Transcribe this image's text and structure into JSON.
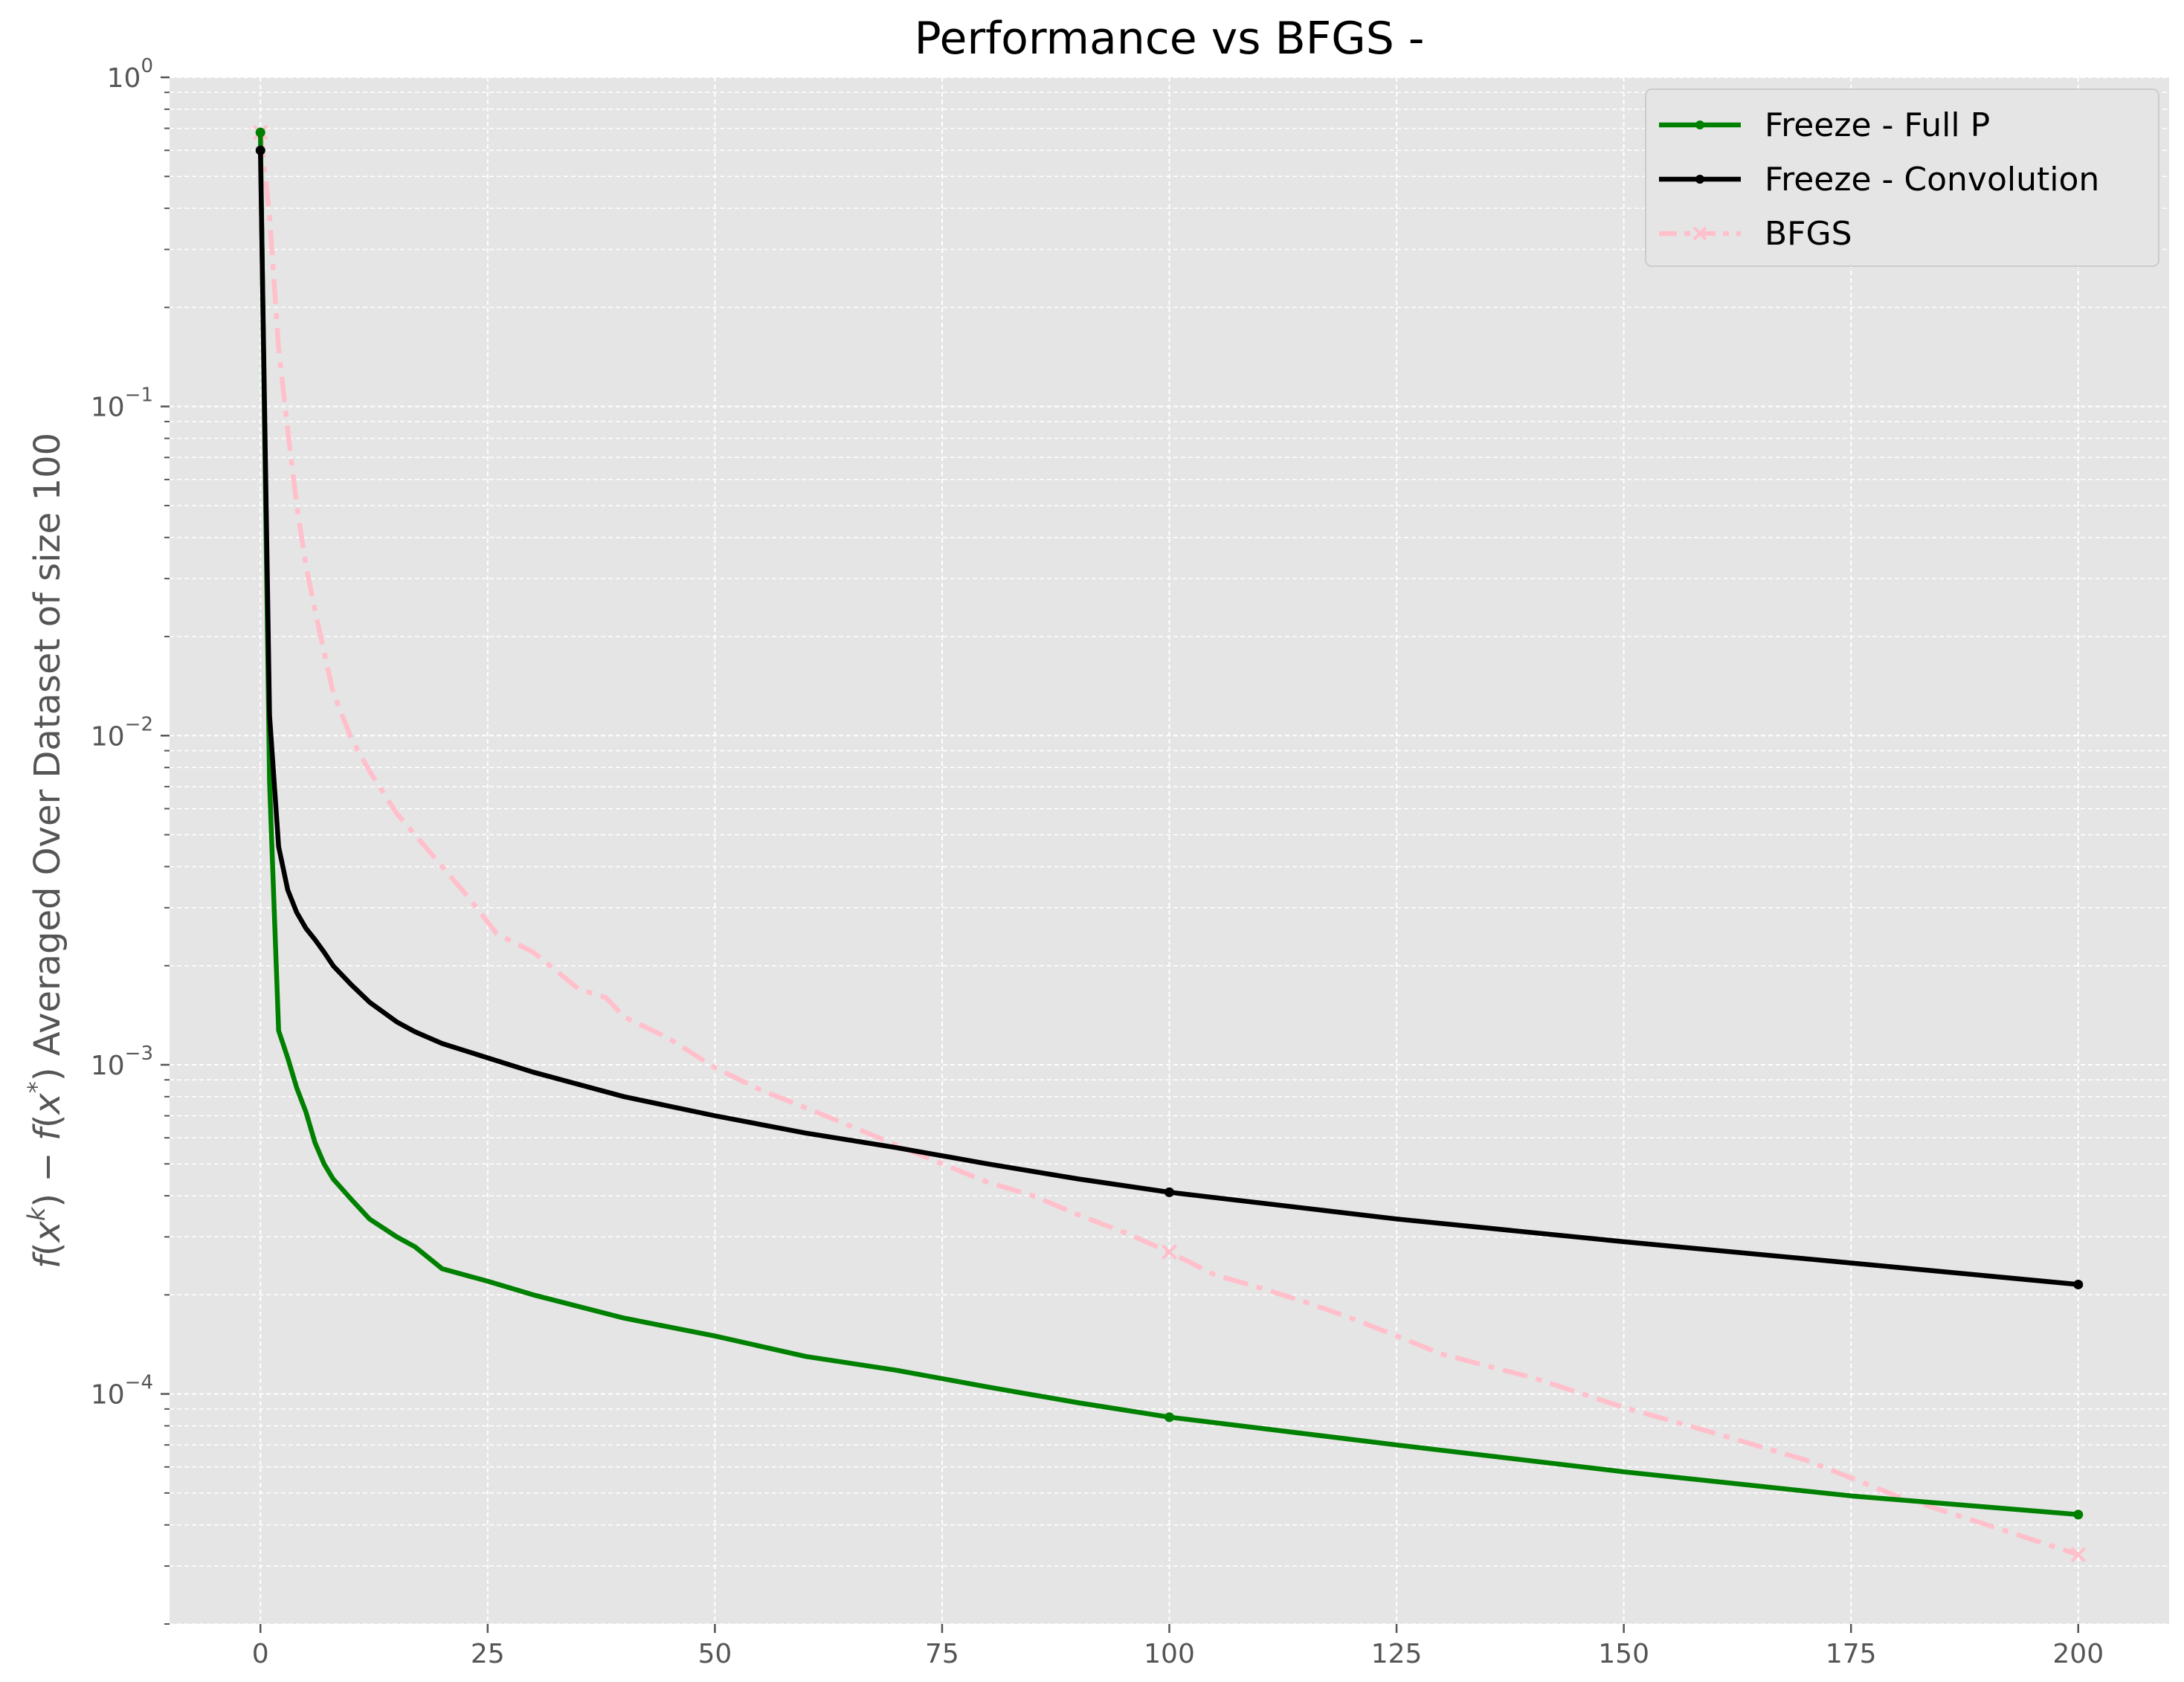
{
  "chart_data": {
    "type": "line",
    "title": "Performance vs BFGS -",
    "xlabel": "",
    "ylabel": "f(x^k) − f(x^*) Averaged Over Dataset of size 100",
    "ylabel_parts": {
      "f1": "f",
      "open1": "(",
      "x1": "x",
      "sup1": "k",
      "close1": ")",
      "minus": " − ",
      "f2": "f",
      "open2": "(",
      "x2": "x",
      "sup2": "*",
      "close2": ")",
      "rest": " Averaged Over Dataset of size 100"
    },
    "xlim": [
      -10,
      210
    ],
    "ylim": [
      2e-05,
      1.0
    ],
    "y_scale": "log",
    "grid": true,
    "legend_position": "top-right",
    "x_ticks": [
      0,
      25,
      50,
      75,
      100,
      125,
      150,
      175,
      200
    ],
    "x_tick_labels": [
      "0",
      "25",
      "50",
      "75",
      "100",
      "125",
      "150",
      "175",
      "200"
    ],
    "y_ticks": [
      1.0,
      0.1,
      0.01,
      0.001,
      0.0001
    ],
    "y_tick_labels": [
      {
        "base": "10",
        "exp": "0"
      },
      {
        "base": "10",
        "exp": "−1"
      },
      {
        "base": "10",
        "exp": "−2"
      },
      {
        "base": "10",
        "exp": "−3"
      },
      {
        "base": "10",
        "exp": "−4"
      }
    ],
    "series": [
      {
        "name": "Freeze - Full P",
        "color": "#008000",
        "style": "solid",
        "marker": "dot",
        "x": [
          0,
          1,
          2,
          3,
          4,
          5,
          6,
          7,
          8,
          10,
          12,
          15,
          17,
          20,
          25,
          30,
          40,
          50,
          60,
          70,
          80,
          90,
          100,
          125,
          150,
          175,
          200
        ],
        "y": [
          0.68,
          0.0072,
          0.00127,
          0.00105,
          0.00085,
          0.00072,
          0.00058,
          0.0005,
          0.00045,
          0.00039,
          0.00034,
          0.0003,
          0.00028,
          0.00024,
          0.00022,
          0.0002,
          0.00017,
          0.00015,
          0.00013,
          0.000118,
          0.000105,
          9.4e-05,
          8.5e-05,
          7e-05,
          5.8e-05,
          4.9e-05,
          4.3e-05
        ],
        "marker_x": [
          0,
          100,
          200
        ]
      },
      {
        "name": "Freeze - Convolution",
        "color": "#000000",
        "style": "solid",
        "marker": "dot",
        "x": [
          0,
          1,
          2,
          3,
          4,
          5,
          6,
          7,
          8,
          10,
          12,
          15,
          17,
          20,
          25,
          30,
          40,
          50,
          60,
          70,
          80,
          90,
          100,
          125,
          150,
          175,
          200
        ],
        "y": [
          0.6,
          0.0115,
          0.0046,
          0.0034,
          0.0029,
          0.0026,
          0.0024,
          0.0022,
          0.002,
          0.00175,
          0.00155,
          0.00135,
          0.00126,
          0.00116,
          0.00105,
          0.00095,
          0.0008,
          0.0007,
          0.00062,
          0.00056,
          0.0005,
          0.00045,
          0.00041,
          0.00034,
          0.00029,
          0.00025,
          0.000215
        ],
        "marker_x": [
          0,
          100,
          200
        ]
      },
      {
        "name": "BFGS",
        "color": "#FFC0CB",
        "style": "dashdot",
        "marker": "x",
        "x": [
          0,
          1,
          2,
          3,
          4,
          5,
          6,
          7,
          8,
          10,
          12,
          15,
          20,
          23,
          26,
          30,
          35,
          38,
          40,
          45,
          50,
          55,
          60,
          65,
          70,
          75,
          80,
          85,
          90,
          95,
          100,
          105,
          110,
          115,
          120,
          125,
          130,
          140,
          150,
          160,
          170,
          180,
          190,
          200
        ],
        "y": [
          0.68,
          0.38,
          0.15,
          0.085,
          0.05,
          0.033,
          0.024,
          0.018,
          0.0135,
          0.0098,
          0.0078,
          0.0058,
          0.004,
          0.0032,
          0.0025,
          0.0022,
          0.0017,
          0.0016,
          0.0014,
          0.0012,
          0.00098,
          0.00084,
          0.00074,
          0.00065,
          0.00057,
          0.0005,
          0.00044,
          0.0004,
          0.00035,
          0.00031,
          0.00027,
          0.00023,
          0.00021,
          0.00019,
          0.00017,
          0.00015,
          0.000132,
          0.000112,
          9.1e-05,
          7.6e-05,
          6.3e-05,
          4.9e-05,
          4e-05,
          3.25e-05
        ],
        "marker_x": [
          0,
          100,
          200
        ]
      }
    ]
  }
}
